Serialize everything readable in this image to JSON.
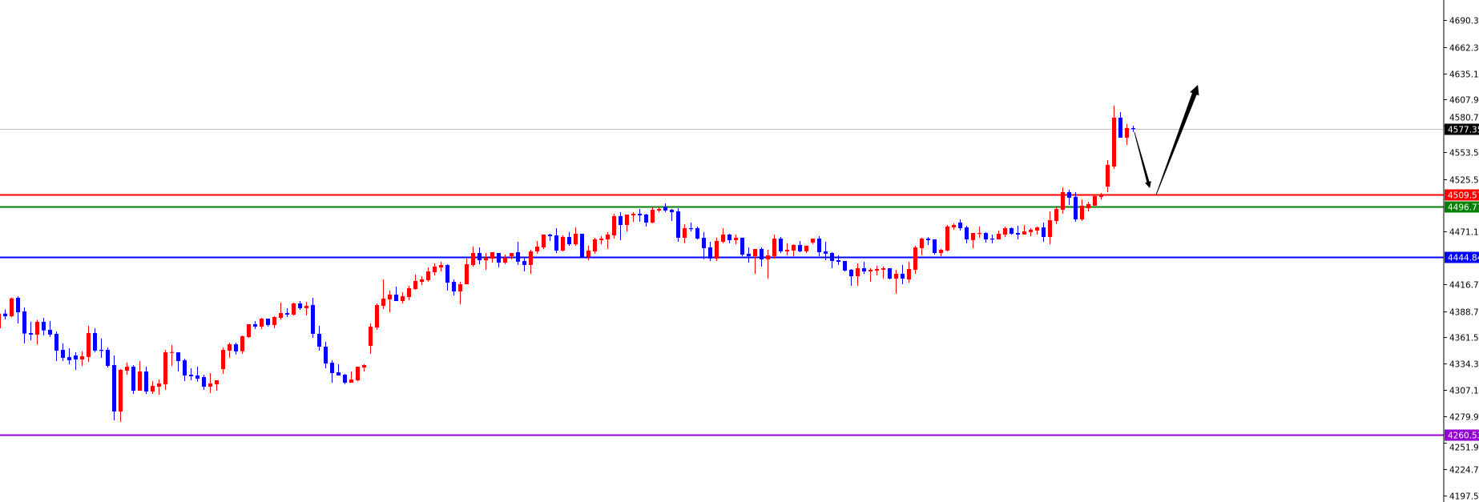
{
  "chart_data": {
    "type": "candlestick",
    "title": "",
    "xlabel": "",
    "ylabel": "",
    "ylim": [
      4190.9,
      4711.0
    ],
    "grid": false,
    "y_axis_position": "right",
    "colors": {
      "up": "#ff0000",
      "down": "#0000ff",
      "background": "#ffffff",
      "axis": "#000000"
    },
    "y_ticks": [
      "4690.30",
      "4662.30",
      "4635.10",
      "4607.90",
      "4580.70",
      "4553.50",
      "4525.50",
      "4471.10",
      "4416.70",
      "4388.70",
      "4361.50",
      "4334.30",
      "4307.10",
      "4279.90",
      "4251.90",
      "4224.70",
      "4197.50"
    ],
    "horizontal_lines": [
      {
        "label": "4577.35",
        "value": 4577.35,
        "color": "#c0c0c0",
        "label_bg": "#000000",
        "role": "current-price"
      },
      {
        "label": "4509.57",
        "value": 4509.57,
        "color": "#ff0000",
        "label_bg": "#ff0000"
      },
      {
        "label": "4496.77",
        "value": 4496.77,
        "color": "#008000",
        "label_bg": "#008000"
      },
      {
        "label": "4444.84",
        "value": 4444.84,
        "color": "#0000ff",
        "label_bg": "#0000ff"
      },
      {
        "label": "4260.53",
        "value": 4260.53,
        "color": "#9400d3",
        "label_bg": "#9400d3"
      }
    ],
    "annotations": [
      {
        "type": "arrow",
        "color": "#000000",
        "weight": "thin",
        "from": [
          177.2,
          4574.2
        ],
        "to": [
          179.6,
          4516.1
        ]
      },
      {
        "type": "arrow",
        "color": "#000000",
        "weight": "thick",
        "from": [
          180.6,
          4509.4
        ],
        "to": [
          187.1,
          4623.1
        ]
      }
    ],
    "ohlc_format": [
      "open",
      "high",
      "low",
      "close"
    ],
    "candles": [
      [
        4370.9,
        4386.1,
        4370.9,
        4386.1
      ],
      [
        4386.1,
        4390.3,
        4380.1,
        4383.4
      ],
      [
        4383.4,
        4402.7,
        4382.5,
        4401.9
      ],
      [
        4402.5,
        4404.1,
        4375.9,
        4387.5
      ],
      [
        4388.4,
        4392.5,
        4355.2,
        4365.4
      ],
      [
        4366.0,
        4377.6,
        4358.5,
        4364.3
      ],
      [
        4364.3,
        4379.8,
        4353.8,
        4377.6
      ],
      [
        4377.6,
        4381.7,
        4363.5,
        4368.7
      ],
      [
        4369.3,
        4378.4,
        4361.8,
        4364.3
      ],
      [
        4365.1,
        4367.6,
        4336.9,
        4347.7
      ],
      [
        4348.5,
        4355.2,
        4336.9,
        4340.2
      ],
      [
        4341.1,
        4350.2,
        4333.6,
        4337.8
      ],
      [
        4342.7,
        4346.0,
        4327.8,
        4338.6
      ],
      [
        4338.6,
        4346.9,
        4331.9,
        4341.9
      ],
      [
        4341.1,
        4373.4,
        4336.1,
        4366.0
      ],
      [
        4366.0,
        4370.9,
        4346.0,
        4347.7
      ],
      [
        4348.5,
        4360.2,
        4340.2,
        4347.7
      ],
      [
        4348.5,
        4351.0,
        4330.3,
        4331.9
      ],
      [
        4332.8,
        4342.7,
        4275.5,
        4284.7
      ],
      [
        4284.7,
        4328.6,
        4273.9,
        4327.8
      ],
      [
        4327.0,
        4335.3,
        4322.8,
        4331.1
      ],
      [
        4331.1,
        4332.8,
        4302.9,
        4306.2
      ],
      [
        4306.2,
        4336.9,
        4306.2,
        4326.1
      ],
      [
        4326.1,
        4331.1,
        4302.9,
        4305.4
      ],
      [
        4305.4,
        4316.2,
        4302.9,
        4311.2
      ],
      [
        4310.4,
        4317.8,
        4302.1,
        4313.7
      ],
      [
        4312.9,
        4348.5,
        4307.1,
        4346.0
      ],
      [
        4345.5,
        4353.5,
        4331.9,
        4346.3
      ],
      [
        4346.0,
        4346.0,
        4326.1,
        4336.9
      ],
      [
        4337.8,
        4339.4,
        4316.2,
        4322.0
      ],
      [
        4322.8,
        4329.5,
        4317.0,
        4321.2
      ],
      [
        4322.0,
        4331.1,
        4315.4,
        4318.7
      ],
      [
        4320.3,
        4322.8,
        4307.1,
        4310.4
      ],
      [
        4310.4,
        4324.5,
        4303.7,
        4313.7
      ],
      [
        4312.9,
        4317.0,
        4306.2,
        4317.0
      ],
      [
        4328.6,
        4351.0,
        4323.6,
        4348.5
      ],
      [
        4347.7,
        4356.0,
        4340.2,
        4354.3
      ],
      [
        4354.3,
        4356.0,
        4343.6,
        4346.9
      ],
      [
        4347.1,
        4363.4,
        4344.6,
        4362.6
      ],
      [
        4361.8,
        4375.1,
        4361.0,
        4375.1
      ],
      [
        4375.1,
        4378.4,
        4370.1,
        4372.6
      ],
      [
        4372.6,
        4381.7,
        4370.1,
        4380.9
      ],
      [
        4380.9,
        4380.9,
        4372.6,
        4374.3
      ],
      [
        4374.3,
        4383.4,
        4370.9,
        4382.5
      ],
      [
        4381.7,
        4397.5,
        4380.0,
        4386.7
      ],
      [
        4386.7,
        4391.7,
        4382.5,
        4385.0
      ],
      [
        4385.0,
        4397.5,
        4384.2,
        4396.6
      ],
      [
        4396.6,
        4399.1,
        4390.0,
        4391.7
      ],
      [
        4391.7,
        4398.3,
        4384.2,
        4394.1
      ],
      [
        4395.0,
        4402.4,
        4361.0,
        4365.1
      ],
      [
        4365.1,
        4373.4,
        4347.7,
        4351.8
      ],
      [
        4351.8,
        4356.8,
        4329.4,
        4334.4
      ],
      [
        4335.2,
        4337.7,
        4314.5,
        4324.5
      ],
      [
        4325.3,
        4333.6,
        4322.0,
        4322.0
      ],
      [
        4322.8,
        4323.6,
        4312.9,
        4314.5
      ],
      [
        4314.5,
        4326.1,
        4314.5,
        4317.8
      ],
      [
        4317.0,
        4331.1,
        4316.2,
        4331.1
      ],
      [
        4330.3,
        4333.6,
        4326.1,
        4332.8
      ],
      [
        4352.6,
        4375.9,
        4344.4,
        4372.6
      ],
      [
        4371.7,
        4396.6,
        4369.3,
        4395.0
      ],
      [
        4394.1,
        4421.5,
        4390.8,
        4401.6
      ],
      [
        4400.8,
        4409.9,
        4387.5,
        4405.8
      ],
      [
        4405.8,
        4414.0,
        4399.1,
        4399.1
      ],
      [
        4399.1,
        4408.2,
        4396.6,
        4404.1
      ],
      [
        4403.3,
        4414.9,
        4400.0,
        4412.4
      ],
      [
        4411.6,
        4426.5,
        4410.7,
        4419.9
      ],
      [
        4419.0,
        4424.8,
        4415.7,
        4421.5
      ],
      [
        4420.7,
        4433.9,
        4419.0,
        4429.8
      ],
      [
        4429.0,
        4438.1,
        4425.7,
        4434.8
      ],
      [
        4433.9,
        4439.8,
        4429.8,
        4436.4
      ],
      [
        4436.4,
        4437.3,
        4409.9,
        4418.2
      ],
      [
        4419.0,
        4421.5,
        4404.9,
        4409.1
      ],
      [
        4409.1,
        4419.0,
        4395.8,
        4416.5
      ],
      [
        4416.5,
        4443.1,
        4416.5,
        4437.3
      ],
      [
        4436.4,
        4455.5,
        4434.8,
        4448.9
      ],
      [
        4448.9,
        4454.7,
        4437.3,
        4441.4
      ],
      [
        4441.4,
        4448.9,
        4431.5,
        4443.9
      ],
      [
        4443.1,
        4449.7,
        4438.9,
        4449.7
      ],
      [
        4448.9,
        4448.9,
        4434.0,
        4438.9
      ],
      [
        4438.9,
        4447.2,
        4437.3,
        4443.9
      ],
      [
        4445.6,
        4448.9,
        4442.3,
        4448.9
      ],
      [
        4449.7,
        4460.5,
        4436.5,
        4439.8
      ],
      [
        4440.6,
        4443.9,
        4429.8,
        4436.5
      ],
      [
        4436.5,
        4452.2,
        4427.3,
        4450.5
      ],
      [
        4450.5,
        4461.3,
        4448.1,
        4455.5
      ],
      [
        4454.7,
        4468.0,
        4453.0,
        4468.0
      ],
      [
        4468.0,
        4468.8,
        4461.3,
        4466.3
      ],
      [
        4467.1,
        4474.6,
        4448.9,
        4451.4
      ],
      [
        4451.4,
        4467.1,
        4450.5,
        4465.5
      ],
      [
        4465.5,
        4470.5,
        4456.4,
        4458.0
      ],
      [
        4458.0,
        4475.4,
        4456.4,
        4468.8
      ],
      [
        4468.8,
        4468.8,
        4445.0,
        4445.0
      ],
      [
        4445.0,
        4456.4,
        4441.4,
        4451.4
      ],
      [
        4450.5,
        4464.6,
        4448.1,
        4463.0
      ],
      [
        4462.2,
        4466.3,
        4458.0,
        4463.8
      ],
      [
        4463.0,
        4470.5,
        4453.0,
        4468.0
      ],
      [
        4467.1,
        4489.5,
        4463.8,
        4487.1
      ],
      [
        4487.1,
        4491.2,
        4462.2,
        4477.9
      ],
      [
        4477.9,
        4488.7,
        4471.3,
        4488.7
      ],
      [
        4487.9,
        4491.2,
        4481.2,
        4489.5
      ],
      [
        4489.5,
        4494.5,
        4481.2,
        4487.9
      ],
      [
        4488.7,
        4489.5,
        4476.3,
        4480.4
      ],
      [
        4480.4,
        4496.2,
        4479.6,
        4493.7
      ],
      [
        4492.9,
        4496.2,
        4491.2,
        4494.5
      ],
      [
        4496.2,
        4500.3,
        4491.2,
        4492.9
      ],
      [
        4493.7,
        4494.5,
        4482.1,
        4491.2
      ],
      [
        4492.0,
        4495.3,
        4460.5,
        4464.6
      ],
      [
        4464.6,
        4478.8,
        4458.9,
        4474.6
      ],
      [
        4474.6,
        4480.4,
        4471.3,
        4473.8
      ],
      [
        4474.6,
        4476.3,
        4463.0,
        4463.8
      ],
      [
        4464.6,
        4470.5,
        4442.3,
        4453.9
      ],
      [
        4454.7,
        4460.5,
        4440.6,
        4443.1
      ],
      [
        4443.1,
        4464.7,
        4440.6,
        4461.3
      ],
      [
        4460.5,
        4474.6,
        4458.9,
        4468.0
      ],
      [
        4468.0,
        4468.8,
        4458.9,
        4462.2
      ],
      [
        4462.2,
        4468.0,
        4458.0,
        4464.7
      ],
      [
        4464.7,
        4464.7,
        4445.6,
        4447.2
      ],
      [
        4448.1,
        4454.7,
        4438.9,
        4445.6
      ],
      [
        4445.6,
        4453.0,
        4427.3,
        4453.0
      ],
      [
        4453.0,
        4454.7,
        4434.8,
        4442.3
      ],
      [
        4442.3,
        4452.2,
        4422.4,
        4446.4
      ],
      [
        4445.6,
        4468.0,
        4443.1,
        4463.8
      ],
      [
        4463.8,
        4465.5,
        4448.9,
        4450.6
      ],
      [
        4450.6,
        4458.9,
        4446.4,
        4452.2
      ],
      [
        4451.4,
        4458.0,
        4445.6,
        4457.2
      ],
      [
        4457.2,
        4461.3,
        4449.7,
        4450.6
      ],
      [
        4450.6,
        4456.4,
        4448.9,
        4456.4
      ],
      [
        4459.7,
        4463.8,
        4458.0,
        4463.8
      ],
      [
        4463.8,
        4466.3,
        4445.6,
        4449.7
      ],
      [
        4450.6,
        4460.5,
        4441.4,
        4448.1
      ],
      [
        4448.9,
        4449.7,
        4433.1,
        4440.6
      ],
      [
        4441.4,
        4446.4,
        4436.5,
        4439.8
      ],
      [
        4440.6,
        4440.6,
        4429.8,
        4430.6
      ],
      [
        4431.5,
        4432.3,
        4414.9,
        4424.8
      ],
      [
        4424.8,
        4438.1,
        4414.9,
        4433.1
      ],
      [
        4433.1,
        4439.8,
        4427.3,
        4429.8
      ],
      [
        4429.8,
        4433.1,
        4419.0,
        4431.5
      ],
      [
        4430.6,
        4435.6,
        4425.7,
        4432.3
      ],
      [
        4431.5,
        4434.8,
        4422.4,
        4433.1
      ],
      [
        4433.1,
        4433.1,
        4421.5,
        4422.4
      ],
      [
        4422.4,
        4431.5,
        4406.6,
        4427.3
      ],
      [
        4427.3,
        4436.5,
        4416.5,
        4422.4
      ],
      [
        4421.5,
        4439.8,
        4418.2,
        4432.3
      ],
      [
        4431.5,
        4456.4,
        4427.3,
        4454.7
      ],
      [
        4453.9,
        4464.7,
        4446.4,
        4463.8
      ],
      [
        4463.8,
        4465.5,
        4457.2,
        4462.2
      ],
      [
        4463.0,
        4463.0,
        4447.2,
        4448.9
      ],
      [
        4448.9,
        4453.0,
        4445.6,
        4452.2
      ],
      [
        4451.4,
        4477.9,
        4450.6,
        4476.3
      ],
      [
        4475.4,
        4479.6,
        4473.0,
        4477.9
      ],
      [
        4480.4,
        4483.7,
        4472.1,
        4474.6
      ],
      [
        4475.4,
        4477.1,
        4458.9,
        4463.0
      ],
      [
        4462.2,
        4469.6,
        4453.9,
        4469.6
      ],
      [
        4468.8,
        4476.3,
        4464.7,
        4469.6
      ],
      [
        4469.6,
        4470.5,
        4459.7,
        4463.0
      ],
      [
        4463.8,
        4468.0,
        4458.9,
        4463.0
      ],
      [
        4463.0,
        4472.1,
        4463.0,
        4468.8
      ],
      [
        4468.0,
        4476.3,
        4465.5,
        4474.6
      ],
      [
        4474.6,
        4475.4,
        4468.0,
        4468.8
      ],
      [
        4469.6,
        4477.1,
        4463.0,
        4468.0
      ],
      [
        4468.0,
        4477.9,
        4468.0,
        4471.3
      ],
      [
        4470.5,
        4474.6,
        4466.3,
        4473.0
      ],
      [
        4472.1,
        4476.3,
        4468.0,
        4475.4
      ],
      [
        4475.4,
        4480.4,
        4460.5,
        4465.5
      ],
      [
        4465.5,
        4492.0,
        4458.0,
        4482.9
      ],
      [
        4482.1,
        4496.2,
        4478.8,
        4494.5
      ],
      [
        4493.7,
        4517.0,
        4489.5,
        4512.0
      ],
      [
        4512.0,
        4514.4,
        4498.7,
        4506.1
      ],
      [
        4507.0,
        4512.0,
        4481.2,
        4483.7
      ],
      [
        4483.7,
        4504.5,
        4482.1,
        4497.9
      ],
      [
        4495.4,
        4502.0,
        4492.0,
        4499.5
      ],
      [
        4497.9,
        4508.6,
        4497.9,
        4507.8
      ],
      [
        4507.0,
        4511.1,
        4504.5,
        4509.5
      ],
      [
        4517.7,
        4545.1,
        4511.9,
        4540.2
      ],
      [
        4538.5,
        4601.5,
        4536.0,
        4589.1
      ],
      [
        4589.1,
        4594.9,
        4568.4,
        4568.4
      ],
      [
        4568.4,
        4582.5,
        4560.9,
        4578.3
      ],
      [
        4578.3,
        4580.8,
        4574.2,
        4577.35
      ]
    ]
  }
}
